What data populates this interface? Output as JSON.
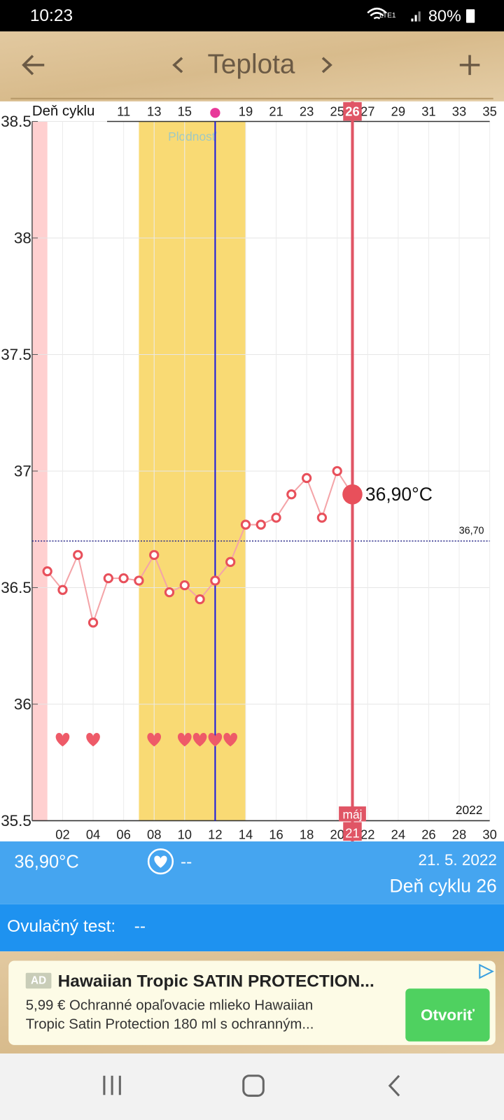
{
  "status_bar": {
    "time": "10:23",
    "network": "LTE1",
    "battery": "80%"
  },
  "header": {
    "title": "Teplota"
  },
  "chart_data": {
    "type": "line",
    "x_axis_label": "Deň cyklu",
    "x": [
      1,
      2,
      3,
      4,
      5,
      6,
      7,
      8,
      9,
      10,
      11,
      12,
      13,
      14,
      15,
      16,
      17,
      18,
      19,
      20,
      21
    ],
    "values": [
      36.57,
      36.49,
      36.64,
      36.35,
      36.54,
      36.54,
      36.53,
      36.64,
      36.48,
      36.51,
      36.45,
      36.53,
      36.61,
      36.77,
      36.77,
      36.8,
      36.9,
      36.97,
      36.8,
      37.0,
      36.9
    ],
    "color": "#e8505b",
    "xlim": [
      0,
      30
    ],
    "xticks": [
      {
        "value": 2,
        "label": "02"
      },
      {
        "value": 4,
        "label": "04"
      },
      {
        "value": 6,
        "label": "06"
      },
      {
        "value": 8,
        "label": "08"
      },
      10,
      12,
      14,
      16,
      18,
      20,
      22,
      24,
      26,
      28,
      30
    ],
    "top_ticks": [
      {
        "value": 6,
        "label": "11"
      },
      {
        "value": 8,
        "label": "13"
      },
      {
        "value": 10,
        "label": "15"
      },
      {
        "value": 14,
        "label": "19"
      },
      {
        "value": 16,
        "label": "21"
      },
      {
        "value": 18,
        "label": "23"
      },
      {
        "value": 20,
        "label": "25"
      },
      {
        "value": 22,
        "label": "27"
      },
      {
        "value": 24,
        "label": "29"
      },
      {
        "value": 26,
        "label": "31"
      },
      {
        "value": 28,
        "label": "33"
      },
      {
        "value": 30,
        "label": "35"
      }
    ],
    "ylim": [
      35.5,
      38.5
    ],
    "yticks": [
      35.5,
      36,
      36.5,
      37,
      37.5,
      38,
      38.5
    ],
    "grid": true,
    "period": {
      "start": 0,
      "end": 1
    },
    "fertile_window": {
      "label": "Plodnosť",
      "start": 7,
      "end": 14
    },
    "ovulation_day": 12,
    "reference_line": {
      "value": 36.7,
      "label": "36,70"
    },
    "intercourse_days": [
      2,
      4,
      8,
      10,
      11,
      12,
      13
    ],
    "year": "2022",
    "selected": {
      "index": 20,
      "value_label": "36,90°C",
      "cycle_day": "26",
      "month": "máj",
      "day": "21"
    }
  },
  "info_panel": {
    "temperature": "36,90°C",
    "intercourse": "--",
    "date": "21. 5. 2022",
    "cycle_day": "Deň cyklu 26"
  },
  "ovulation_test": {
    "label": "Ovulačný test:",
    "value": "--"
  },
  "ad": {
    "badge": "AD",
    "title": "Hawaiian Tropic SATIN PROTECTION...",
    "description_lines": [
      "5,99 € Ochranné opaľovacie mlieko Hawaiian",
      "Tropic Satin Protection 180 ml s ochranným..."
    ],
    "button": "Otvoriť"
  }
}
